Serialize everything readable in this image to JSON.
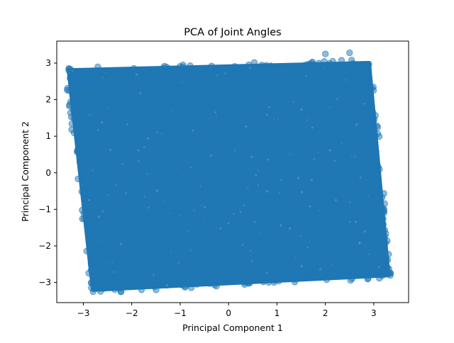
{
  "chart_data": {
    "type": "scatter",
    "title": "PCA of Joint Angles",
    "xlabel": "Principal Component 1",
    "ylabel": "Principal Component 2",
    "xlim": [
      -3.55,
      3.72
    ],
    "ylim": [
      -3.55,
      3.6
    ],
    "xticks": [
      -3,
      -2,
      -1,
      0,
      1,
      2,
      3
    ],
    "yticks": [
      -3,
      -2,
      -1,
      0,
      1,
      2,
      3
    ],
    "grid": false,
    "marker_color": "#1f77b4",
    "marker_alpha": 0.5,
    "region_corners": [
      {
        "x": -3.3,
        "y": 2.8
      },
      {
        "x": 2.9,
        "y": 3.0
      },
      {
        "x": 3.3,
        "y": -2.8
      },
      {
        "x": -2.8,
        "y": -3.2
      }
    ],
    "point_spread_x": [
      -3.35,
      3.35
    ],
    "point_spread_y": [
      -3.25,
      3.28
    ],
    "outliers": [
      {
        "x": 2.0,
        "y": 3.25
      },
      {
        "x": 2.5,
        "y": 3.28
      },
      {
        "x": -3.3,
        "y": 2.85
      },
      {
        "x": 3.35,
        "y": -2.75
      },
      {
        "x": -1.8,
        "y": -3.2
      },
      {
        "x": -0.25,
        "y": -3.1
      },
      {
        "x": -2.8,
        "y": -3.25
      }
    ]
  }
}
